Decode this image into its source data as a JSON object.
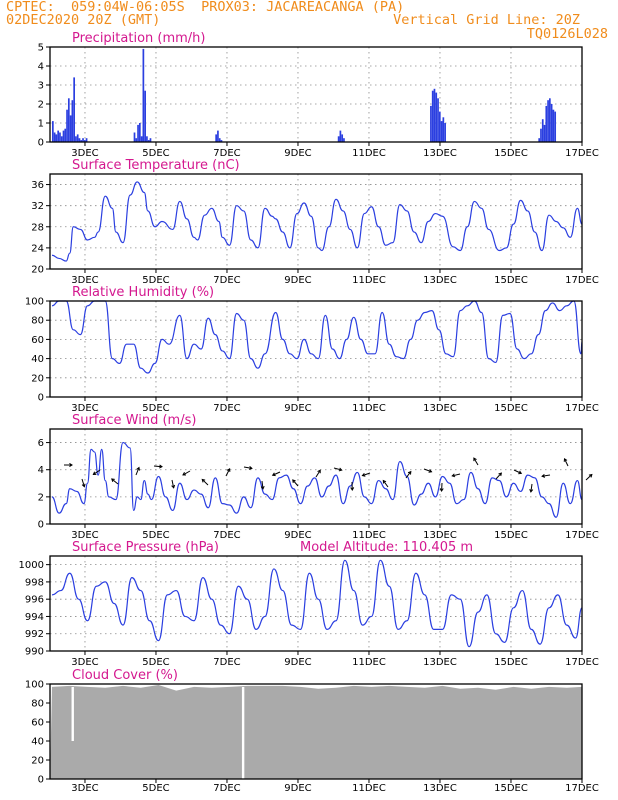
{
  "header": {
    "line1_left": "CPTEC:  059:04W-06:05S  PROX03: JACAREACANGA (PA)",
    "line2_left": "02DEC2020 20Z (GMT)",
    "line2_right": "Vertical Grid Line: 20Z",
    "line3_right": "TQ0126L028"
  },
  "colors": {
    "header": "#f08c1c",
    "panel_title": "#d4188f",
    "series": "#2b3fe0",
    "cloud": "#aaaaaa",
    "arrow": "#000000"
  },
  "chart_data": [
    {
      "id": "precip",
      "type": "bar",
      "title": "Precipitation (mm/h)",
      "xticks": [
        "3DEC",
        "5DEC",
        "7DEC",
        "9DEC",
        "11DEC",
        "13DEC",
        "15DEC",
        "17DEC"
      ],
      "ylim": [
        0,
        5
      ],
      "yticks": [
        0,
        1,
        2,
        3,
        4,
        5
      ],
      "grid": true,
      "x_day_offset": [
        0.0,
        0.05,
        0.1,
        0.15,
        0.2,
        0.25,
        0.3,
        0.35,
        0.4,
        0.45,
        0.5,
        0.55,
        0.6,
        0.65,
        0.7,
        0.75,
        0.8,
        0.85,
        0.9,
        0.95,
        2.3,
        2.35,
        2.4,
        2.45,
        2.5,
        2.55,
        2.6,
        2.65,
        2.7,
        2.75,
        4.6,
        4.65,
        4.7,
        4.75,
        8.05,
        8.1,
        8.15,
        8.2,
        10.65,
        10.7,
        10.75,
        10.8,
        10.85,
        10.9,
        10.95,
        11.0,
        11.05,
        13.7,
        13.75,
        13.8,
        13.85,
        13.9,
        13.95,
        14.0,
        14.05,
        14.1,
        14.15
      ],
      "values": [
        1.1,
        0.5,
        0.4,
        0.6,
        0.5,
        0.3,
        0.6,
        0.7,
        1.7,
        2.3,
        1.4,
        2.2,
        3.4,
        0.3,
        0.4,
        0.2,
        0.1,
        0.2,
        0.1,
        0.2,
        0.5,
        0.2,
        0.9,
        1.0,
        0.3,
        4.9,
        2.7,
        0.3,
        0.1,
        0.2,
        0.4,
        0.6,
        0.2,
        0.1,
        0.3,
        0.6,
        0.4,
        0.2,
        1.9,
        2.7,
        2.8,
        2.6,
        2.3,
        1.6,
        1.1,
        1.3,
        1.0,
        0.2,
        0.7,
        1.2,
        0.9,
        1.9,
        2.2,
        2.3,
        2.0,
        1.7,
        1.6
      ]
    },
    {
      "id": "temp",
      "type": "line",
      "title": "Surface Temperature (nC)",
      "xticks": [
        "3DEC",
        "5DEC",
        "7DEC",
        "9DEC",
        "11DEC",
        "13DEC",
        "15DEC",
        "17DEC"
      ],
      "ylim": [
        20,
        38
      ],
      "yticks": [
        20,
        24,
        28,
        32,
        36
      ],
      "grid": true,
      "x_day_offset": [
        0,
        0.2,
        0.4,
        0.5,
        0.6,
        0.8,
        1.0,
        1.2,
        1.3,
        1.5,
        1.7,
        1.8,
        2.0,
        2.2,
        2.4,
        2.6,
        2.7,
        2.9,
        3.1,
        3.4,
        3.6,
        3.8,
        4.0,
        4.1,
        4.3,
        4.5,
        4.7,
        4.8,
        5.0,
        5.2,
        5.4,
        5.6,
        5.8,
        6.0,
        6.2,
        6.3,
        6.5,
        6.7,
        6.9,
        7.1,
        7.3,
        7.5,
        7.6,
        7.8,
        8.0,
        8.2,
        8.4,
        8.6,
        8.8,
        9.0,
        9.2,
        9.4,
        9.6,
        9.8,
        10.0,
        10.2,
        10.4,
        10.6,
        10.8,
        11.0,
        11.3,
        11.5,
        11.7,
        11.9,
        12.1,
        12.3,
        12.6,
        12.8,
        13.0,
        13.2,
        13.4,
        13.6,
        13.8,
        14.0,
        14.2,
        14.4,
        14.6,
        14.8,
        15.0
      ],
      "values": [
        22.6,
        22.0,
        21.5,
        23.0,
        28.0,
        27.5,
        25.5,
        26.0,
        27.0,
        33.8,
        31.5,
        27.0,
        25.0,
        34.0,
        36.5,
        34.5,
        31.0,
        28.0,
        29.0,
        27.5,
        32.8,
        29.5,
        26.0,
        25.5,
        30.2,
        31.5,
        29.0,
        26.0,
        24.5,
        32.0,
        31.0,
        25.5,
        24.0,
        31.5,
        30.0,
        29.5,
        27.0,
        24.0,
        30.5,
        32.5,
        30.0,
        24.0,
        23.5,
        28.0,
        33.2,
        31.0,
        27.5,
        24.0,
        30.5,
        31.8,
        28.0,
        24.5,
        25.0,
        32.2,
        31.0,
        27.0,
        25.0,
        29.0,
        30.5,
        30.0,
        24.2,
        23.5,
        28.0,
        32.8,
        31.5,
        27.5,
        23.5,
        24.0,
        28.5,
        33.0,
        31.0,
        27.0,
        23.5,
        30.2,
        29.0,
        27.8,
        26.0,
        31.5,
        28.5
      ]
    },
    {
      "id": "humidity",
      "type": "line",
      "title": "Relative Humidity (%)",
      "xticks": [
        "3DEC",
        "5DEC",
        "7DEC",
        "9DEC",
        "11DEC",
        "13DEC",
        "15DEC",
        "17DEC"
      ],
      "ylim": [
        0,
        100
      ],
      "yticks": [
        0,
        20,
        40,
        60,
        80,
        100
      ],
      "grid": true,
      "x_day_offset": [
        0,
        0.2,
        0.4,
        0.6,
        0.8,
        1.0,
        1.2,
        1.5,
        1.7,
        1.9,
        2.1,
        2.3,
        2.5,
        2.7,
        2.9,
        3.1,
        3.3,
        3.6,
        3.8,
        4.0,
        4.2,
        4.4,
        4.6,
        4.8,
        5.0,
        5.2,
        5.4,
        5.6,
        5.8,
        6.0,
        6.3,
        6.5,
        6.7,
        6.9,
        7.1,
        7.3,
        7.5,
        7.7,
        7.9,
        8.1,
        8.3,
        8.5,
        8.7,
        8.9,
        9.1,
        9.3,
        9.5,
        9.7,
        9.9,
        10.1,
        10.3,
        10.5,
        10.7,
        10.9,
        11.1,
        11.3,
        11.5,
        11.7,
        11.9,
        12.1,
        12.3,
        12.5,
        12.7,
        12.9,
        13.1,
        13.3,
        13.5,
        13.7,
        13.9,
        14.1,
        14.3,
        14.5,
        14.7,
        14.9,
        15.0
      ],
      "values": [
        95,
        100,
        100,
        70,
        65,
        95,
        100,
        100,
        40,
        35,
        55,
        55,
        30,
        25,
        35,
        60,
        55,
        85,
        40,
        55,
        50,
        82,
        65,
        48,
        40,
        87,
        80,
        40,
        30,
        45,
        88,
        60,
        45,
        40,
        60,
        45,
        40,
        85,
        50,
        40,
        60,
        83,
        60,
        45,
        45,
        88,
        55,
        42,
        40,
        60,
        80,
        88,
        90,
        70,
        45,
        42,
        90,
        95,
        100,
        88,
        40,
        36,
        85,
        87,
        50,
        40,
        45,
        65,
        90,
        98,
        90,
        95,
        100,
        45,
        58
      ]
    },
    {
      "id": "wind",
      "type": "line",
      "title": "Surface Wind (m/s)",
      "xticks": [
        "3DEC",
        "5DEC",
        "7DEC",
        "9DEC",
        "11DEC",
        "13DEC",
        "15DEC",
        "17DEC"
      ],
      "ylim": [
        0,
        7
      ],
      "yticks": [
        0,
        2,
        4,
        6
      ],
      "grid": true,
      "x_day_offset": [
        0,
        0.2,
        0.4,
        0.5,
        0.7,
        0.9,
        1.0,
        1.1,
        1.2,
        1.3,
        1.4,
        1.5,
        1.6,
        1.8,
        2.0,
        2.2,
        2.3,
        2.4,
        2.5,
        2.6,
        2.7,
        2.8,
        3.0,
        3.2,
        3.4,
        3.6,
        3.8,
        4.0,
        4.2,
        4.4,
        4.6,
        4.8,
        5.0,
        5.2,
        5.4,
        5.6,
        5.8,
        6.0,
        6.2,
        6.4,
        6.6,
        6.8,
        7.0,
        7.2,
        7.4,
        7.6,
        7.8,
        8.0,
        8.2,
        8.4,
        8.6,
        8.8,
        9.0,
        9.2,
        9.4,
        9.6,
        9.8,
        10.0,
        10.2,
        10.4,
        10.6,
        10.8,
        11.0,
        11.2,
        11.4,
        11.6,
        11.8,
        12.0,
        12.2,
        12.4,
        12.6,
        12.8,
        13.0,
        13.2,
        13.4,
        13.6,
        13.8,
        14.0,
        14.2,
        14.4,
        14.6,
        14.8,
        15.0
      ],
      "values": [
        2.0,
        0.8,
        1.5,
        2.6,
        2.4,
        1.5,
        3.0,
        5.5,
        5.3,
        3.6,
        5.5,
        3.2,
        2.0,
        1.8,
        6.0,
        5.6,
        1.0,
        2.0,
        1.8,
        3.2,
        2.2,
        1.8,
        3.5,
        2.0,
        1.0,
        3.0,
        1.8,
        2.5,
        2.2,
        1.2,
        3.4,
        1.5,
        1.4,
        0.8,
        2.0,
        1.2,
        3.4,
        2.2,
        1.8,
        3.4,
        3.6,
        2.6,
        1.5,
        2.8,
        3.4,
        2.0,
        2.8,
        3.6,
        1.5,
        2.8,
        3.8,
        2.0,
        1.5,
        3.2,
        2.6,
        1.8,
        4.6,
        3.5,
        1.4,
        2.2,
        3.0,
        2.0,
        3.5,
        3.0,
        1.5,
        1.8,
        3.8,
        2.6,
        1.5,
        3.4,
        3.2,
        2.0,
        3.0,
        2.4,
        3.6,
        3.4,
        2.0,
        1.5,
        0.5,
        3.0,
        1.5,
        3.2,
        1.8
      ]
    },
    {
      "id": "pressure",
      "type": "line",
      "title": "Surface Pressure (hPa)",
      "annotation": "Model Altitude: 110.405 m",
      "xticks": [
        "3DEC",
        "5DEC",
        "7DEC",
        "9DEC",
        "11DEC",
        "13DEC",
        "15DEC",
        "17DEC"
      ],
      "ylim": [
        990,
        1001
      ],
      "yticks": [
        990,
        992,
        994,
        996,
        998,
        1000
      ],
      "grid": true,
      "x_day_offset": [
        0,
        0.25,
        0.5,
        0.75,
        1.0,
        1.25,
        1.5,
        1.75,
        2.0,
        2.25,
        2.5,
        2.75,
        3.0,
        3.25,
        3.5,
        3.75,
        4.0,
        4.25,
        4.5,
        4.75,
        5.0,
        5.25,
        5.5,
        5.75,
        6.0,
        6.25,
        6.5,
        6.75,
        7.0,
        7.25,
        7.5,
        7.75,
        8.0,
        8.25,
        8.5,
        8.75,
        9.0,
        9.25,
        9.5,
        9.75,
        10.0,
        10.25,
        10.5,
        10.75,
        11.0,
        11.25,
        11.5,
        11.75,
        12.0,
        12.25,
        12.5,
        12.75,
        13.0,
        13.25,
        13.5,
        13.75,
        14.0,
        14.25,
        14.5,
        14.75,
        15.0
      ],
      "values": [
        996.5,
        997.0,
        999.0,
        996.0,
        993.5,
        997.5,
        998.0,
        995.5,
        993.0,
        998.5,
        997.0,
        993.5,
        991.2,
        996.5,
        997.0,
        994.0,
        993.5,
        998.5,
        996.0,
        993.0,
        992.0,
        997.5,
        996.0,
        992.5,
        994.0,
        999.5,
        997.0,
        993.0,
        992.5,
        999.0,
        996.0,
        992.5,
        993.5,
        1000.5,
        997.0,
        993.0,
        994.0,
        1000.5,
        997.5,
        992.5,
        993.5,
        999.0,
        996.5,
        992.5,
        992.5,
        996.5,
        996.0,
        990.5,
        994.5,
        996.5,
        992.0,
        991.0,
        995.0,
        997.0,
        992.5,
        990.8,
        995.0,
        996.5,
        993.0,
        991.5,
        995.0
      ]
    },
    {
      "id": "cloud",
      "type": "bar",
      "title": "Cloud Cover (%)",
      "xticks": [
        "3DEC",
        "5DEC",
        "7DEC",
        "9DEC",
        "11DEC",
        "13DEC",
        "15DEC",
        "17DEC"
      ],
      "ylim": [
        0,
        100
      ],
      "yticks": [
        0,
        20,
        40,
        60,
        80,
        100
      ],
      "grid": false,
      "x_day_offset": [
        0,
        0.5,
        1.0,
        1.5,
        2.0,
        2.5,
        3.0,
        3.5,
        4.0,
        4.5,
        5.0,
        5.5,
        6.0,
        6.5,
        7.0,
        7.5,
        8.0,
        8.5,
        9.0,
        9.5,
        10.0,
        10.5,
        11.0,
        11.5,
        12.0,
        12.5,
        13.0,
        13.5,
        14.0,
        14.5,
        15.0
      ],
      "values": [
        97,
        98,
        97,
        96,
        98,
        96,
        99,
        93,
        97,
        96,
        97,
        98,
        98,
        98,
        97,
        95,
        96,
        98,
        97,
        98,
        97,
        96,
        98,
        95,
        96,
        94,
        97,
        95,
        97,
        96,
        97
      ],
      "dips": [
        {
          "day": 0.55,
          "value": 40
        },
        {
          "day": 5.35,
          "value": 0
        }
      ]
    }
  ]
}
